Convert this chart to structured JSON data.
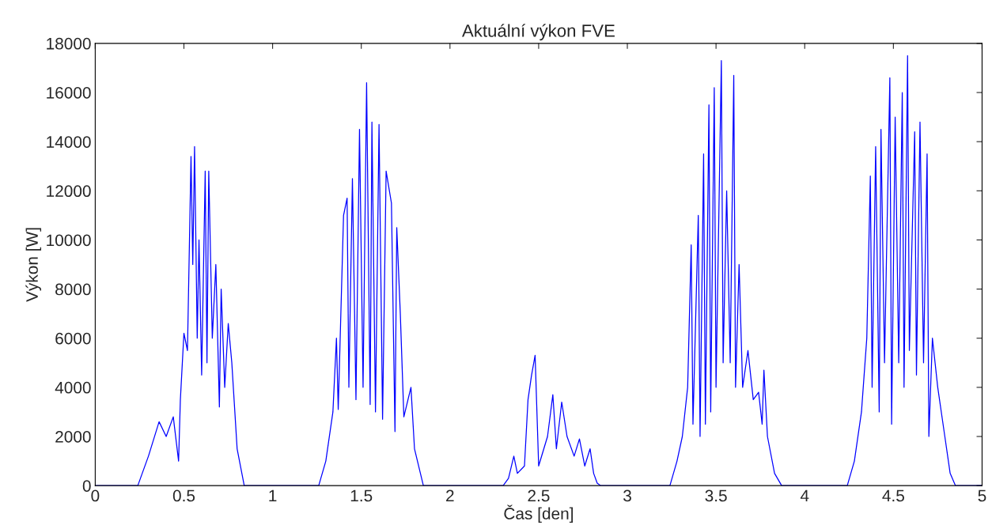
{
  "chart_data": {
    "type": "line",
    "title": "Aktuální výkon FVE",
    "xlabel": "Čas [den]",
    "ylabel": "Výkon [W]",
    "xlim": [
      0,
      5
    ],
    "xticks": [
      0,
      0.5,
      1,
      1.5,
      2,
      2.5,
      3,
      3.5,
      4,
      4.5,
      5
    ],
    "ylim": [
      0,
      18000
    ],
    "yticks": [
      0,
      2000,
      4000,
      6000,
      8000,
      10000,
      12000,
      14000,
      16000,
      18000
    ],
    "grid": false,
    "legend": false,
    "marker": "none",
    "line_style": "solid",
    "series": [
      {
        "color": "#0000ff",
        "x": [
          0,
          0.24,
          0.3,
          0.36,
          0.4,
          0.44,
          0.47,
          0.48,
          0.5,
          0.52,
          0.54,
          0.55,
          0.56,
          0.575,
          0.585,
          0.6,
          0.62,
          0.63,
          0.64,
          0.66,
          0.68,
          0.7,
          0.71,
          0.73,
          0.75,
          0.77,
          0.8,
          0.84,
          1.26,
          1.3,
          1.34,
          1.36,
          1.37,
          1.4,
          1.42,
          1.43,
          1.45,
          1.47,
          1.49,
          1.51,
          1.53,
          1.55,
          1.56,
          1.58,
          1.6,
          1.62,
          1.64,
          1.67,
          1.69,
          1.7,
          1.72,
          1.74,
          1.78,
          1.8,
          1.85,
          2.3,
          2.33,
          2.36,
          2.38,
          2.42,
          2.44,
          2.46,
          2.48,
          2.5,
          2.55,
          2.58,
          2.6,
          2.63,
          2.66,
          2.7,
          2.73,
          2.76,
          2.79,
          2.81,
          2.83,
          2.85,
          3.24,
          3.28,
          3.31,
          3.34,
          3.36,
          3.37,
          3.4,
          3.41,
          3.43,
          3.44,
          3.46,
          3.47,
          3.49,
          3.5,
          3.53,
          3.54,
          3.56,
          3.58,
          3.6,
          3.61,
          3.63,
          3.65,
          3.68,
          3.71,
          3.74,
          3.76,
          3.77,
          3.79,
          3.83,
          3.87,
          4.24,
          4.28,
          4.32,
          4.35,
          4.37,
          4.38,
          4.4,
          4.42,
          4.43,
          4.45,
          4.48,
          4.49,
          4.51,
          4.53,
          4.55,
          4.56,
          4.58,
          4.59,
          4.62,
          4.63,
          4.65,
          4.67,
          4.69,
          4.7,
          4.72,
          4.75,
          4.79,
          4.82,
          4.85,
          5
        ],
        "values": [
          0,
          0,
          1200,
          2600,
          2000,
          2800,
          1000,
          3500,
          6200,
          5500,
          13400,
          9000,
          13800,
          6000,
          10000,
          4500,
          12800,
          5000,
          12800,
          6000,
          9000,
          3200,
          8000,
          4000,
          6600,
          5000,
          1500,
          0,
          0,
          1000,
          3000,
          6000,
          3100,
          11000,
          11700,
          4000,
          12500,
          3500,
          14500,
          4000,
          16400,
          3300,
          14800,
          3000,
          14700,
          2700,
          12800,
          11500,
          2200,
          10500,
          7000,
          2800,
          4000,
          1500,
          0,
          0,
          300,
          1200,
          500,
          800,
          3500,
          4500,
          5300,
          800,
          2000,
          3700,
          1500,
          3400,
          2000,
          1200,
          1900,
          800,
          1500,
          500,
          100,
          0,
          0,
          1000,
          2000,
          4000,
          9800,
          2500,
          11000,
          2000,
          13500,
          2500,
          15500,
          3000,
          16200,
          4000,
          17300,
          5000,
          12000,
          5000,
          16700,
          4000,
          9000,
          4000,
          5500,
          3500,
          3800,
          2500,
          4700,
          2000,
          500,
          0,
          0,
          1000,
          3000,
          6000,
          12600,
          4000,
          13800,
          3000,
          14500,
          5000,
          16600,
          2500,
          15000,
          5000,
          16000,
          4000,
          17500,
          5500,
          14400,
          4500,
          14800,
          5000,
          13500,
          2000,
          6000,
          4000,
          2000,
          500,
          0,
          0
        ]
      }
    ]
  }
}
